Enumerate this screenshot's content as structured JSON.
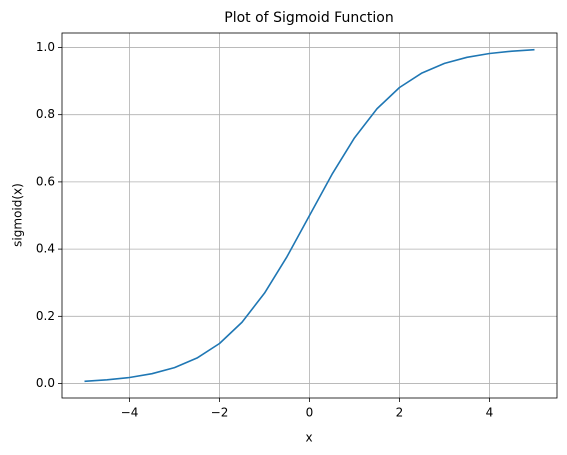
{
  "chart_data": {
    "type": "line",
    "title": "Plot of Sigmoid Function",
    "x_label": "x",
    "y_label": "sigmoid(x)",
    "x": [
      -5,
      -4.5,
      -4,
      -3.5,
      -3,
      -2.5,
      -2,
      -1.5,
      -1,
      -0.5,
      0,
      0.5,
      1,
      1.5,
      2,
      2.5,
      3,
      3.5,
      4,
      4.5,
      5
    ],
    "values": [
      0.0067,
      0.011,
      0.018,
      0.0293,
      0.0474,
      0.0759,
      0.1192,
      0.1824,
      0.2689,
      0.3775,
      0.5,
      0.6225,
      0.7311,
      0.8176,
      0.8808,
      0.9241,
      0.9526,
      0.9707,
      0.982,
      0.989,
      0.9933
    ],
    "color": "#1f77b4",
    "xlim": [
      -5.5,
      5.5
    ],
    "xticks": [
      {
        "value": -4,
        "label": "−4"
      },
      {
        "value": -2,
        "label": "−2"
      },
      0,
      2,
      4
    ],
    "ylim": [
      -0.043,
      1.043
    ],
    "yticks": [
      {
        "value": 0,
        "label": "0.0"
      },
      0.2,
      0.4,
      0.6,
      0.8,
      {
        "value": 1,
        "label": "1.0"
      }
    ],
    "grid": true
  }
}
